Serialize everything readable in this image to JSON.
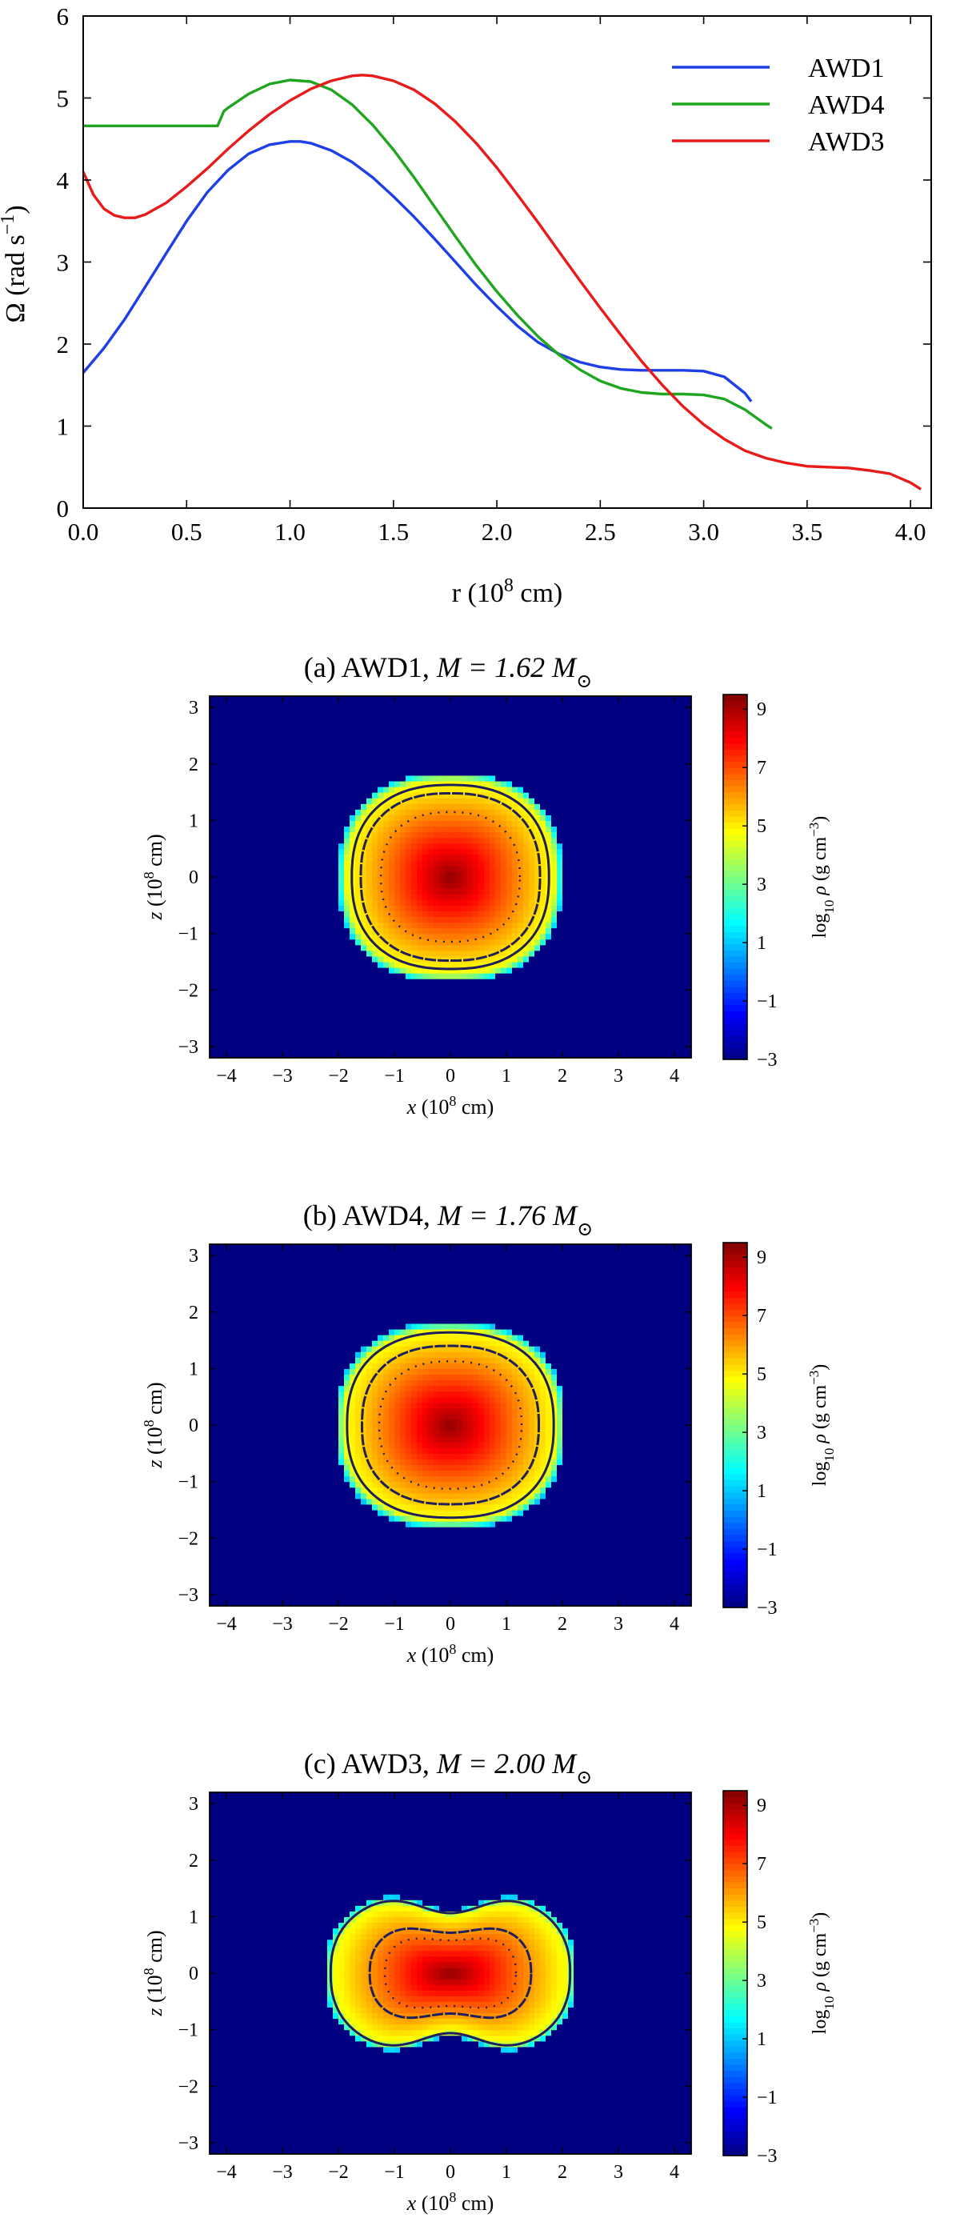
{
  "chart_data": [
    {
      "type": "line",
      "xlabel": "r (10^8 cm)",
      "ylabel": "Ω (rad s^−1)",
      "xlim": [
        0.0,
        4.1
      ],
      "ylim": [
        0,
        6
      ],
      "xticks": [
        "0.0",
        "0.5",
        "1.0",
        "1.5",
        "2.0",
        "2.5",
        "3.0",
        "3.5",
        "4.0"
      ],
      "yticks": [
        "0",
        "1",
        "2",
        "3",
        "4",
        "5",
        "6"
      ],
      "legend_position": "top-right",
      "series": [
        {
          "name": "AWD1",
          "color": "#1f3fe6",
          "x": [
            0.0,
            0.1,
            0.2,
            0.3,
            0.4,
            0.5,
            0.6,
            0.7,
            0.8,
            0.9,
            1.0,
            1.05,
            1.1,
            1.2,
            1.3,
            1.4,
            1.5,
            1.6,
            1.7,
            1.8,
            1.9,
            2.0,
            2.1,
            2.2,
            2.3,
            2.4,
            2.5,
            2.6,
            2.7,
            2.8,
            2.9,
            3.0,
            3.1,
            3.2,
            3.23
          ],
          "y": [
            1.65,
            1.95,
            2.3,
            2.7,
            3.1,
            3.5,
            3.85,
            4.12,
            4.32,
            4.43,
            4.47,
            4.47,
            4.45,
            4.36,
            4.22,
            4.03,
            3.8,
            3.55,
            3.28,
            3.0,
            2.72,
            2.46,
            2.22,
            2.02,
            1.88,
            1.78,
            1.72,
            1.69,
            1.68,
            1.68,
            1.68,
            1.67,
            1.6,
            1.4,
            1.3
          ]
        },
        {
          "name": "AWD4",
          "color": "#1fa51f",
          "x": [
            0.0,
            0.2,
            0.4,
            0.6,
            0.65,
            0.68,
            0.7,
            0.8,
            0.9,
            1.0,
            1.1,
            1.2,
            1.3,
            1.4,
            1.5,
            1.6,
            1.7,
            1.8,
            1.9,
            2.0,
            2.1,
            2.2,
            2.3,
            2.4,
            2.5,
            2.6,
            2.7,
            2.8,
            2.9,
            3.0,
            3.1,
            3.2,
            3.3,
            3.33
          ],
          "y": [
            4.66,
            4.66,
            4.66,
            4.66,
            4.66,
            4.84,
            4.88,
            5.05,
            5.17,
            5.22,
            5.2,
            5.1,
            4.92,
            4.67,
            4.37,
            4.03,
            3.67,
            3.31,
            2.96,
            2.64,
            2.35,
            2.09,
            1.87,
            1.69,
            1.55,
            1.46,
            1.41,
            1.39,
            1.39,
            1.38,
            1.33,
            1.2,
            1.02,
            0.97
          ]
        },
        {
          "name": "AWD3",
          "color": "#e81a1a",
          "x": [
            0.0,
            0.05,
            0.1,
            0.15,
            0.2,
            0.25,
            0.3,
            0.4,
            0.5,
            0.6,
            0.7,
            0.8,
            0.9,
            1.0,
            1.1,
            1.2,
            1.3,
            1.35,
            1.4,
            1.5,
            1.6,
            1.7,
            1.8,
            1.9,
            2.0,
            2.1,
            2.2,
            2.3,
            2.4,
            2.5,
            2.6,
            2.7,
            2.8,
            2.9,
            3.0,
            3.1,
            3.2,
            3.3,
            3.4,
            3.5,
            3.6,
            3.7,
            3.8,
            3.9,
            4.0,
            4.05
          ],
          "y": [
            4.1,
            3.82,
            3.65,
            3.57,
            3.54,
            3.54,
            3.58,
            3.72,
            3.92,
            4.14,
            4.38,
            4.6,
            4.8,
            4.97,
            5.11,
            5.21,
            5.27,
            5.28,
            5.27,
            5.21,
            5.1,
            4.93,
            4.71,
            4.45,
            4.15,
            3.82,
            3.48,
            3.13,
            2.78,
            2.44,
            2.11,
            1.79,
            1.5,
            1.24,
            1.02,
            0.84,
            0.7,
            0.61,
            0.55,
            0.51,
            0.5,
            0.49,
            0.46,
            0.42,
            0.31,
            0.23
          ]
        }
      ]
    },
    {
      "type": "heatmap",
      "title_prefix": "(a) AWD1,",
      "mass_text": "M = 1.62 M",
      "shape": {
        "w": 2.0,
        "h": 1.85,
        "n": 2.0,
        "pinch": 0.0,
        "hp": 0.0,
        "wp": 1.0
      },
      "contours": {
        "outer": 0.88,
        "middle": 0.8,
        "inner": 0.62
      },
      "xlim": [
        -4.3,
        4.3
      ],
      "ylim": [
        -3.2,
        3.2
      ],
      "xticks": [
        "−4",
        "−3",
        "−2",
        "−1",
        "0",
        "1",
        "2",
        "3",
        "4"
      ],
      "yticks": [
        "−3",
        "−2",
        "−1",
        "0",
        "1",
        "2",
        "3"
      ],
      "xlabel_var": "x",
      "ylabel_var": "z",
      "axis_unit": "(10^8 cm)",
      "colorbar": {
        "label": "log10 ρ (g cm^−3)",
        "ticks": [
          "−3",
          "−1",
          "1",
          "3",
          "5",
          "7",
          "9"
        ],
        "range": [
          -3,
          9.5
        ]
      }
    },
    {
      "type": "heatmap",
      "title_prefix": "(b) AWD4,",
      "mass_text": "M = 1.76 M",
      "shape": {
        "w": 2.05,
        "h": 1.82,
        "n": 2.0,
        "pinch": 0.0,
        "hp": 0.0,
        "wp": 1.0
      },
      "contours": {
        "outer": 0.9,
        "middle": 0.77,
        "inner": 0.62
      },
      "xlim": [
        -4.3,
        4.3
      ],
      "ylim": [
        -3.2,
        3.2
      ],
      "xticks": [
        "−4",
        "−3",
        "−2",
        "−1",
        "0",
        "1",
        "2",
        "3",
        "4"
      ],
      "yticks": [
        "−3",
        "−2",
        "−1",
        "0",
        "1",
        "2",
        "3"
      ],
      "xlabel_var": "x",
      "ylabel_var": "z",
      "axis_unit": "(10^8 cm)",
      "colorbar": {
        "label": "log10 ρ (g cm^−3)",
        "ticks": [
          "−3",
          "−1",
          "1",
          "3",
          "5",
          "7",
          "9"
        ],
        "range": [
          -3,
          9.5
        ]
      }
    },
    {
      "type": "heatmap",
      "title_prefix": "(c) AWD3,",
      "mass_text": "M = 2.00 M",
      "shape": {
        "w": 2.25,
        "h": 1.55,
        "n": 2.0,
        "pinch": 0.0,
        "hp": 0.62,
        "wp": 0.55
      },
      "contours": {
        "outer": 0.95,
        "middle": 0.64,
        "inner": 0.52
      },
      "xlim": [
        -4.3,
        4.3
      ],
      "ylim": [
        -3.2,
        3.2
      ],
      "xticks": [
        "−4",
        "−3",
        "−2",
        "−1",
        "0",
        "1",
        "2",
        "3",
        "4"
      ],
      "yticks": [
        "−3",
        "−2",
        "−1",
        "0",
        "1",
        "2",
        "3"
      ],
      "xlabel_var": "x",
      "ylabel_var": "z",
      "axis_unit": "(10^8 cm)",
      "colorbar": {
        "label": "log10 ρ (g cm^−3)",
        "ticks": [
          "−3",
          "−1",
          "1",
          "3",
          "5",
          "7",
          "9"
        ],
        "range": [
          -3,
          9.5
        ]
      }
    }
  ]
}
